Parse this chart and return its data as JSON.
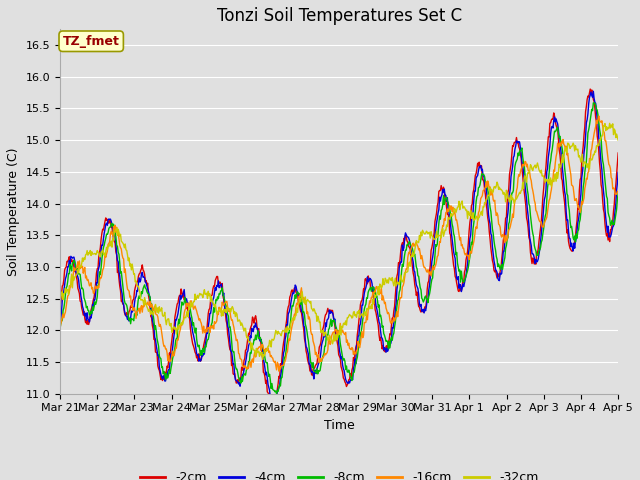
{
  "title": "Tonzi Soil Temperatures Set C",
  "xlabel": "Time",
  "ylabel": "Soil Temperature (C)",
  "ylim": [
    11.0,
    16.75
  ],
  "yticks": [
    11.0,
    11.5,
    12.0,
    12.5,
    13.0,
    13.5,
    14.0,
    14.5,
    15.0,
    15.5,
    16.0,
    16.5
  ],
  "series": [
    {
      "label": "-2cm",
      "color": "#dd0000"
    },
    {
      "label": "-4cm",
      "color": "#0000dd"
    },
    {
      "label": "-8cm",
      "color": "#00bb00"
    },
    {
      "label": "-16cm",
      "color": "#ff8800"
    },
    {
      "label": "-32cm",
      "color": "#cccc00"
    }
  ],
  "annotation_text": "TZ_fmet",
  "annotation_color": "#990000",
  "annotation_bg": "#ffffcc",
  "annotation_edge": "#999900",
  "background_color": "#e0e0e0",
  "grid_color": "#ffffff",
  "n_days": 15,
  "title_fontsize": 12,
  "axis_label_fontsize": 9,
  "tick_label_fontsize": 8,
  "legend_fontsize": 9,
  "figsize": [
    6.4,
    4.8
  ],
  "dpi": 100
}
